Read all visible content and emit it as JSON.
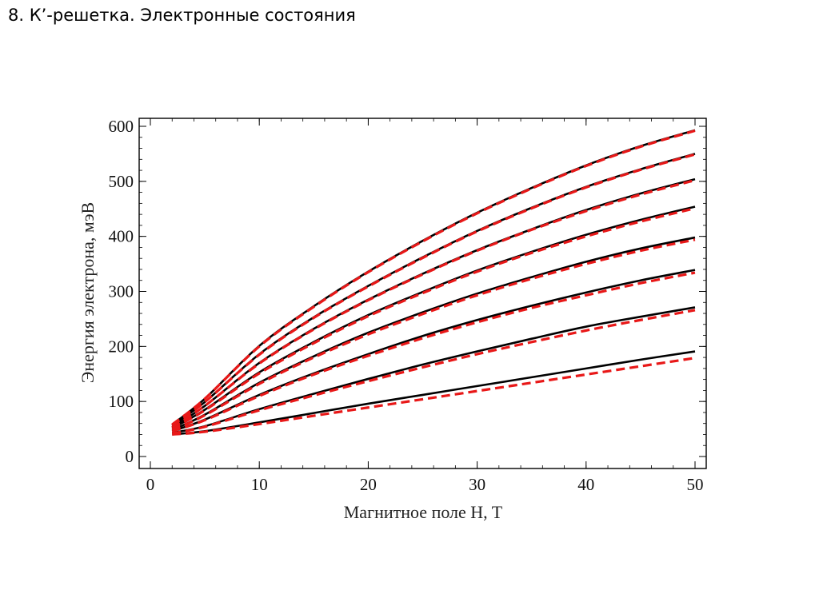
{
  "page": {
    "title": "8. К’-решетка. Электронные состояния"
  },
  "colors": {
    "solid": "#000000",
    "dashed": "#e81818",
    "frame": "#000000"
  },
  "chart_data": {
    "type": "line",
    "xlabel": "Магнитное поле H, T",
    "ylabel": "Энергия электрона, мэВ",
    "xlim": [
      0,
      50
    ],
    "ylim": [
      0,
      600
    ],
    "xticks": [
      0,
      10,
      20,
      30,
      40,
      50
    ],
    "yticks": [
      0,
      100,
      200,
      300,
      400,
      500,
      600
    ],
    "x": [
      2,
      5,
      10,
      15,
      20,
      25,
      30,
      35,
      40,
      45,
      50
    ],
    "series": [
      {
        "style": "solid",
        "values": [
          40,
          46,
          62,
          79,
          96,
          112,
          128,
          144,
          160,
          176,
          191
        ]
      },
      {
        "style": "dashed",
        "values": [
          40,
          45,
          59,
          74,
          89,
          104,
          119,
          134,
          149,
          164,
          179
        ]
      },
      {
        "style": "solid",
        "values": [
          43,
          55,
          86,
          114,
          141,
          167,
          191,
          214,
          236,
          254,
          271
        ]
      },
      {
        "style": "dashed",
        "values": [
          42,
          54,
          84,
          111,
          137,
          162,
          186,
          208,
          229,
          248,
          266
        ]
      },
      {
        "style": "solid",
        "values": [
          46,
          67,
          112,
          151,
          186,
          219,
          248,
          274,
          298,
          320,
          339
        ]
      },
      {
        "style": "dashed",
        "values": [
          46,
          66,
          110,
          149,
          183,
          215,
          244,
          270,
          293,
          315,
          334
        ]
      },
      {
        "style": "solid",
        "values": [
          48,
          76,
          134,
          182,
          225,
          262,
          296,
          326,
          354,
          378,
          398
        ]
      },
      {
        "style": "dashed",
        "values": [
          48,
          75,
          132,
          180,
          222,
          259,
          293,
          323,
          350,
          374,
          394
        ]
      },
      {
        "style": "solid",
        "values": [
          51,
          85,
          153,
          208,
          257,
          299,
          338,
          372,
          403,
          430,
          454
        ]
      },
      {
        "style": "dashed",
        "values": [
          51,
          84,
          151,
          206,
          255,
          297,
          336,
          370,
          400,
          427,
          451
        ]
      },
      {
        "style": "solid",
        "values": [
          53,
          92,
          170,
          232,
          285,
          332,
          375,
          413,
          448,
          478,
          504
        ]
      },
      {
        "style": "dashed",
        "values": [
          53,
          92,
          169,
          231,
          284,
          331,
          374,
          412,
          446,
          476,
          502
        ]
      },
      {
        "style": "solid",
        "values": [
          56,
          99,
          186,
          253,
          310,
          362,
          410,
          452,
          490,
          522,
          550
        ]
      },
      {
        "style": "dashed",
        "values": [
          56,
          99,
          185,
          252,
          309,
          361,
          409,
          451,
          489,
          521,
          549
        ]
      },
      {
        "style": "solid",
        "values": [
          58,
          105,
          201,
          273,
          336,
          392,
          443,
          488,
          529,
          564,
          593
        ]
      },
      {
        "style": "dashed",
        "values": [
          58,
          105,
          200,
          272,
          335,
          391,
          442,
          487,
          528,
          563,
          592
        ]
      }
    ]
  }
}
